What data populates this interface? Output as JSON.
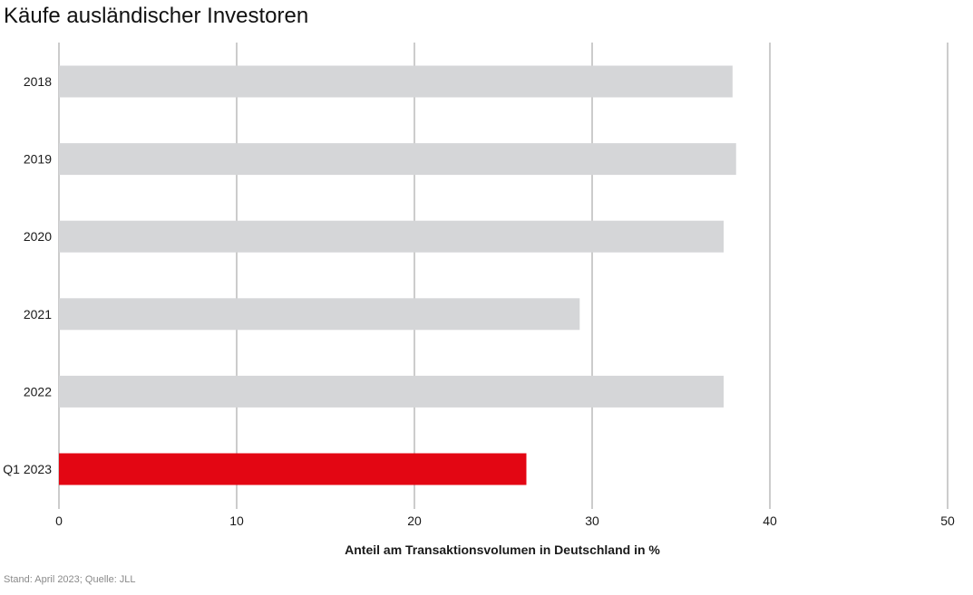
{
  "chart_data": {
    "type": "bar",
    "orientation": "horizontal",
    "title": "Käufe ausländischer Investoren",
    "xlabel": "Anteil am Transaktionsvolumen in Deutschland in %",
    "ylabel": "",
    "categories": [
      "2018",
      "2019",
      "2020",
      "2021",
      "2022",
      "Q1 2023"
    ],
    "values": [
      37.9,
      38.1,
      37.4,
      29.3,
      37.4,
      26.3
    ],
    "xlim": [
      0,
      50
    ],
    "xticks": [
      "0",
      "10",
      "20",
      "30",
      "40",
      "50"
    ],
    "grid": "vertical",
    "colors": {
      "default_bar": "#d5d6d8",
      "highlight_bar": "#e30613",
      "grid": "#9a9a9a"
    },
    "highlight_category": "Q1 2023"
  },
  "footer": {
    "source": "Stand: April 2023; Quelle: JLL"
  }
}
